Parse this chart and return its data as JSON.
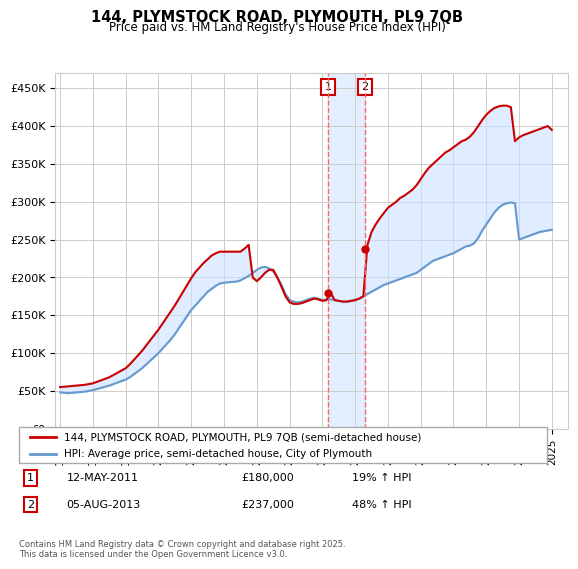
{
  "title": "144, PLYMSTOCK ROAD, PLYMOUTH, PL9 7QB",
  "subtitle": "Price paid vs. HM Land Registry's House Price Index (HPI)",
  "ylabel_ticks": [
    "£0",
    "£50K",
    "£100K",
    "£150K",
    "£200K",
    "£250K",
    "£300K",
    "£350K",
    "£400K",
    "£450K"
  ],
  "ytick_values": [
    0,
    50000,
    100000,
    150000,
    200000,
    250000,
    300000,
    350000,
    400000,
    450000
  ],
  "ylim": [
    0,
    470000
  ],
  "xlim_start": 1995,
  "xlim_end": 2026,
  "legend_line1": "144, PLYMSTOCK ROAD, PLYMOUTH, PL9 7QB (semi-detached house)",
  "legend_line2": "HPI: Average price, semi-detached house, City of Plymouth",
  "sale1_date": "12-MAY-2011",
  "sale1_price": 180000,
  "sale1_pct": "19% ↑ HPI",
  "sale1_x": 2011.36,
  "sale2_date": "05-AUG-2013",
  "sale2_price": 237000,
  "sale2_pct": "48% ↑ HPI",
  "sale2_x": 2013.59,
  "footer": "Contains HM Land Registry data © Crown copyright and database right 2025.\nThis data is licensed under the Open Government Licence v3.0.",
  "line_color_red": "#cc0000",
  "line_color_blue": "#6699cc",
  "shading_color": "#cce0ff",
  "vline_color": "#ff6666",
  "background_color": "#ffffff",
  "grid_color": "#cccccc",
  "hpi_years": [
    1995.0,
    1995.25,
    1995.5,
    1995.75,
    1996.0,
    1996.25,
    1996.5,
    1996.75,
    1997.0,
    1997.25,
    1997.5,
    1997.75,
    1998.0,
    1998.25,
    1998.5,
    1998.75,
    1999.0,
    1999.25,
    1999.5,
    1999.75,
    2000.0,
    2000.25,
    2000.5,
    2000.75,
    2001.0,
    2001.25,
    2001.5,
    2001.75,
    2002.0,
    2002.25,
    2002.5,
    2002.75,
    2003.0,
    2003.25,
    2003.5,
    2003.75,
    2004.0,
    2004.25,
    2004.5,
    2004.75,
    2005.0,
    2005.25,
    2005.5,
    2005.75,
    2006.0,
    2006.25,
    2006.5,
    2006.75,
    2007.0,
    2007.25,
    2007.5,
    2007.75,
    2008.0,
    2008.25,
    2008.5,
    2008.75,
    2009.0,
    2009.25,
    2009.5,
    2009.75,
    2010.0,
    2010.25,
    2010.5,
    2010.75,
    2011.0,
    2011.25,
    2011.5,
    2011.75,
    2012.0,
    2012.25,
    2012.5,
    2012.75,
    2013.0,
    2013.25,
    2013.5,
    2013.75,
    2014.0,
    2014.25,
    2014.5,
    2014.75,
    2015.0,
    2015.25,
    2015.5,
    2015.75,
    2016.0,
    2016.25,
    2016.5,
    2016.75,
    2017.0,
    2017.25,
    2017.5,
    2017.75,
    2018.0,
    2018.25,
    2018.5,
    2018.75,
    2019.0,
    2019.25,
    2019.5,
    2019.75,
    2020.0,
    2020.25,
    2020.5,
    2020.75,
    2021.0,
    2021.25,
    2021.5,
    2021.75,
    2022.0,
    2022.25,
    2022.5,
    2022.75,
    2023.0,
    2023.25,
    2023.5,
    2023.75,
    2024.0,
    2024.25,
    2024.5,
    2024.75,
    2025.0
  ],
  "hpi_values": [
    48000,
    47500,
    47000,
    47500,
    48000,
    48500,
    49000,
    50000,
    51000,
    52500,
    54000,
    55500,
    57000,
    59000,
    61000,
    63000,
    65000,
    68000,
    72000,
    76000,
    80000,
    85000,
    90000,
    95000,
    100000,
    106000,
    112000,
    118000,
    125000,
    133000,
    141000,
    149000,
    157000,
    163000,
    169000,
    175000,
    181000,
    185000,
    189000,
    192000,
    193000,
    193500,
    194000,
    194500,
    196000,
    199000,
    202000,
    206000,
    210000,
    213000,
    214000,
    212000,
    208000,
    200000,
    190000,
    178000,
    170000,
    168000,
    167000,
    168000,
    170000,
    172000,
    173000,
    172000,
    170000,
    171000,
    171000,
    170000,
    169000,
    168000,
    168000,
    169000,
    170000,
    172000,
    175000,
    178000,
    181000,
    184000,
    187000,
    190000,
    192000,
    194000,
    196000,
    198000,
    200000,
    202000,
    204000,
    206000,
    210000,
    214000,
    218000,
    222000,
    224000,
    226000,
    228000,
    230000,
    232000,
    235000,
    238000,
    241000,
    242000,
    245000,
    252000,
    262000,
    270000,
    278000,
    286000,
    292000,
    296000,
    298000,
    299000,
    298000,
    250000,
    252000,
    254000,
    256000,
    258000,
    260000,
    261000,
    262000,
    263000
  ],
  "red_years": [
    1995.0,
    1995.25,
    1995.5,
    1995.75,
    1996.0,
    1996.25,
    1996.5,
    1996.75,
    1997.0,
    1997.25,
    1997.5,
    1997.75,
    1998.0,
    1998.25,
    1998.5,
    1998.75,
    1999.0,
    1999.25,
    1999.5,
    1999.75,
    2000.0,
    2000.25,
    2000.5,
    2000.75,
    2001.0,
    2001.25,
    2001.5,
    2001.75,
    2002.0,
    2002.25,
    2002.5,
    2002.75,
    2003.0,
    2003.25,
    2003.5,
    2003.75,
    2004.0,
    2004.25,
    2004.5,
    2004.75,
    2005.0,
    2005.25,
    2005.5,
    2005.75,
    2006.0,
    2006.25,
    2006.5,
    2006.75,
    2007.0,
    2007.25,
    2007.5,
    2007.75,
    2008.0,
    2008.25,
    2008.5,
    2008.75,
    2009.0,
    2009.25,
    2009.5,
    2009.75,
    2010.0,
    2010.25,
    2010.5,
    2010.75,
    2011.0,
    2011.25,
    2011.5,
    2011.75,
    2012.0,
    2012.25,
    2012.5,
    2012.75,
    2013.0,
    2013.25,
    2013.5,
    2013.75,
    2014.0,
    2014.25,
    2014.5,
    2014.75,
    2015.0,
    2015.25,
    2015.5,
    2015.75,
    2016.0,
    2016.25,
    2016.5,
    2016.75,
    2017.0,
    2017.25,
    2017.5,
    2017.75,
    2018.0,
    2018.25,
    2018.5,
    2018.75,
    2019.0,
    2019.25,
    2019.5,
    2019.75,
    2020.0,
    2020.25,
    2020.5,
    2020.75,
    2021.0,
    2021.25,
    2021.5,
    2021.75,
    2022.0,
    2022.25,
    2022.5,
    2022.75,
    2023.0,
    2023.25,
    2023.5,
    2023.75,
    2024.0,
    2024.25,
    2024.5,
    2024.75,
    2025.0
  ],
  "red_values": [
    55000,
    55500,
    56000,
    56500,
    57000,
    57500,
    58000,
    59000,
    60000,
    62000,
    64000,
    66000,
    68000,
    71000,
    74000,
    77000,
    80000,
    85000,
    91000,
    97000,
    103000,
    110000,
    117000,
    124000,
    131000,
    139000,
    147000,
    155000,
    163000,
    172000,
    181000,
    190000,
    199000,
    207000,
    213000,
    219000,
    224000,
    229000,
    232000,
    234000,
    234000,
    234000,
    234000,
    234000,
    234000,
    238000,
    243000,
    200000,
    195000,
    200000,
    206000,
    210000,
    210000,
    200000,
    188000,
    175000,
    167000,
    165000,
    165000,
    166000,
    168000,
    170000,
    172000,
    171000,
    169000,
    170000,
    180000,
    170000,
    169000,
    168000,
    168000,
    169000,
    170000,
    172000,
    175000,
    243000,
    260000,
    270000,
    278000,
    285000,
    292000,
    296000,
    300000,
    305000,
    308000,
    312000,
    316000,
    322000,
    330000,
    338000,
    345000,
    350000,
    355000,
    360000,
    365000,
    368000,
    372000,
    376000,
    380000,
    382000,
    386000,
    392000,
    400000,
    408000,
    415000,
    420000,
    424000,
    426000,
    427000,
    427000,
    425000,
    380000,
    385000,
    388000,
    390000,
    392000,
    394000,
    396000,
    398000,
    400000,
    395000
  ]
}
